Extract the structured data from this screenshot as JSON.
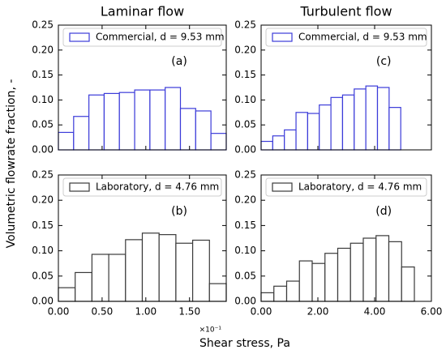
{
  "figure": {
    "ylabel": "Volumetric flowrate fraction, -",
    "xlabel": "Shear stress, Pa"
  },
  "chart_data": [
    {
      "type": "histogram",
      "title": "Laminar flow",
      "panel_label": "(a)",
      "series": [
        {
          "name": "Commercial, d = 9.53 mm",
          "color": "#3b3bd9",
          "bins": [
            0,
            0.1745,
            0.349,
            0.5235,
            0.698,
            0.8725,
            1.047,
            1.2215,
            1.396,
            1.5705,
            1.745,
            1.92
          ],
          "values": [
            0.035,
            0.067,
            0.11,
            0.113,
            0.115,
            0.12,
            0.12,
            0.125,
            0.083,
            0.078,
            0.033
          ]
        }
      ],
      "xlim": [
        0,
        1.92
      ],
      "ylim": [
        0,
        0.25
      ],
      "yticks": [
        {
          "value": 0,
          "label": "0.00"
        },
        {
          "value": 0.05,
          "label": "0.05"
        },
        {
          "value": 0.1,
          "label": "0.10"
        },
        {
          "value": 0.15,
          "label": "0.15"
        },
        {
          "value": 0.2,
          "label": "0.20"
        },
        {
          "value": 0.25,
          "label": "0.25"
        }
      ]
    },
    {
      "type": "histogram",
      "panel_label": "(b)",
      "x_offset_label": "×10⁻¹",
      "series": [
        {
          "name": "Laboratory, d = 4.76 mm",
          "color": "#3a3a3a",
          "bins": [
            0,
            0.192,
            0.384,
            0.576,
            0.768,
            0.96,
            1.152,
            1.344,
            1.536,
            1.728,
            1.92
          ],
          "values": [
            0.027,
            0.057,
            0.093,
            0.093,
            0.122,
            0.135,
            0.132,
            0.115,
            0.121,
            0.035
          ]
        }
      ],
      "xlim": [
        0,
        1.92
      ],
      "ylim": [
        0,
        0.25
      ],
      "xticks": [
        {
          "value": 0,
          "label": "0.00"
        },
        {
          "value": 0.5,
          "label": "0.50"
        },
        {
          "value": 1,
          "label": "1.00"
        },
        {
          "value": 1.5,
          "label": "1.50"
        }
      ],
      "yticks": [
        {
          "value": 0,
          "label": "0.00"
        },
        {
          "value": 0.05,
          "label": "0.05"
        },
        {
          "value": 0.1,
          "label": "0.10"
        },
        {
          "value": 0.15,
          "label": "0.15"
        },
        {
          "value": 0.2,
          "label": "0.20"
        },
        {
          "value": 0.25,
          "label": "0.25"
        }
      ]
    },
    {
      "type": "histogram",
      "title": "Turbulent flow",
      "panel_label": "(c)",
      "series": [
        {
          "name": "Commercial, d = 9.53 mm",
          "color": "#3b3bd9",
          "bins": [
            0,
            0.41,
            0.82,
            1.23,
            1.64,
            2.05,
            2.46,
            2.87,
            3.28,
            3.69,
            4.1,
            4.51,
            4.92
          ],
          "values": [
            0.017,
            0.028,
            0.04,
            0.075,
            0.073,
            0.09,
            0.105,
            0.11,
            0.122,
            0.128,
            0.125,
            0.085
          ]
        }
      ],
      "xlim": [
        0,
        6
      ],
      "ylim": [
        0,
        0.25
      ],
      "yticks": [
        {
          "value": 0,
          "label": "0.00"
        },
        {
          "value": 0.05,
          "label": "0.05"
        },
        {
          "value": 0.1,
          "label": "0.10"
        },
        {
          "value": 0.15,
          "label": "0.15"
        },
        {
          "value": 0.2,
          "label": "0.20"
        },
        {
          "value": 0.25,
          "label": "0.25"
        }
      ]
    },
    {
      "type": "histogram",
      "panel_label": "(d)",
      "series": [
        {
          "name": "Laboratory, d = 4.76 mm",
          "color": "#3a3a3a",
          "bins": [
            0,
            0.45,
            0.9,
            1.35,
            1.8,
            2.25,
            2.7,
            3.15,
            3.6,
            4.05,
            4.5,
            4.95,
            5.4
          ],
          "values": [
            0.017,
            0.03,
            0.04,
            0.08,
            0.075,
            0.095,
            0.105,
            0.115,
            0.125,
            0.13,
            0.118,
            0.068
          ]
        }
      ],
      "xlim": [
        0,
        6
      ],
      "ylim": [
        0,
        0.25
      ],
      "xticks": [
        {
          "value": 0,
          "label": "0.00"
        },
        {
          "value": 2,
          "label": "2.00"
        },
        {
          "value": 4,
          "label": "4.00"
        },
        {
          "value": 6,
          "label": "6.00"
        }
      ],
      "yticks": [
        {
          "value": 0,
          "label": "0.00"
        },
        {
          "value": 0.05,
          "label": "0.05"
        },
        {
          "value": 0.1,
          "label": "0.10"
        },
        {
          "value": 0.15,
          "label": "0.15"
        },
        {
          "value": 0.2,
          "label": "0.20"
        },
        {
          "value": 0.25,
          "label": "0.25"
        }
      ]
    }
  ]
}
